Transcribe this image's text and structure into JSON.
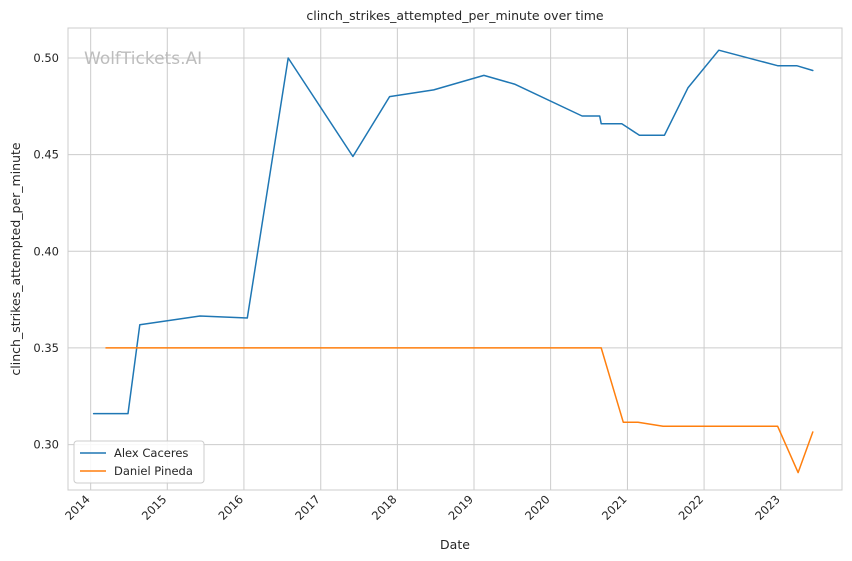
{
  "chart_data": {
    "type": "line",
    "title": "clinch_strikes_attempted_per_minute over time",
    "xlabel": "Date",
    "ylabel": "clinch_strikes_attempted_per_minute",
    "xlim": [
      "2013-09-15",
      "2023-10-20"
    ],
    "ylim": [
      0.2765,
      0.5155
    ],
    "x_ticks": [
      "2014",
      "2015",
      "2016",
      "2017",
      "2018",
      "2019",
      "2020",
      "2021",
      "2022",
      "2023"
    ],
    "y_ticks": [
      "0.30",
      "0.35",
      "0.40",
      "0.45",
      "0.50"
    ],
    "y_tick_values": [
      0.3,
      0.35,
      0.4,
      0.45,
      0.5
    ],
    "grid": true,
    "legend_position": "lower-left",
    "watermark": "WolfTickets.AI",
    "series": [
      {
        "name": "Alex Caceres",
        "color": "#1f77b4",
        "x": [
          "2014-01-15",
          "2014-06-28",
          "2014-08-23",
          "2015-06-06",
          "2016-01-17",
          "2016-07-30",
          "2017-06-03",
          "2017-11-25",
          "2018-06-23",
          "2019-02-17",
          "2019-07-13",
          "2020-05-30",
          "2020-08-22",
          "2020-08-29",
          "2020-12-05",
          "2021-02-27",
          "2021-06-26",
          "2021-10-16",
          "2022-03-12",
          "2022-12-17",
          "2023-03-18",
          "2023-06-03"
        ],
        "y": [
          0.316,
          0.316,
          0.362,
          0.3665,
          0.3655,
          0.5,
          0.449,
          0.48,
          0.4835,
          0.491,
          0.4865,
          0.47,
          0.47,
          0.466,
          0.466,
          0.46,
          0.46,
          0.4845,
          0.504,
          0.496,
          0.496,
          0.4935
        ]
      },
      {
        "name": "Daniel Pineda",
        "color": "#ff7f0e",
        "x": [
          "2014-03-15",
          "2020-08-29",
          "2020-12-12",
          "2021-02-20",
          "2021-06-20",
          "2022-12-17",
          "2023-03-25",
          "2023-06-03"
        ],
        "y": [
          0.35,
          0.35,
          0.3115,
          0.3115,
          0.3095,
          0.3095,
          0.2855,
          0.3065
        ]
      }
    ]
  }
}
